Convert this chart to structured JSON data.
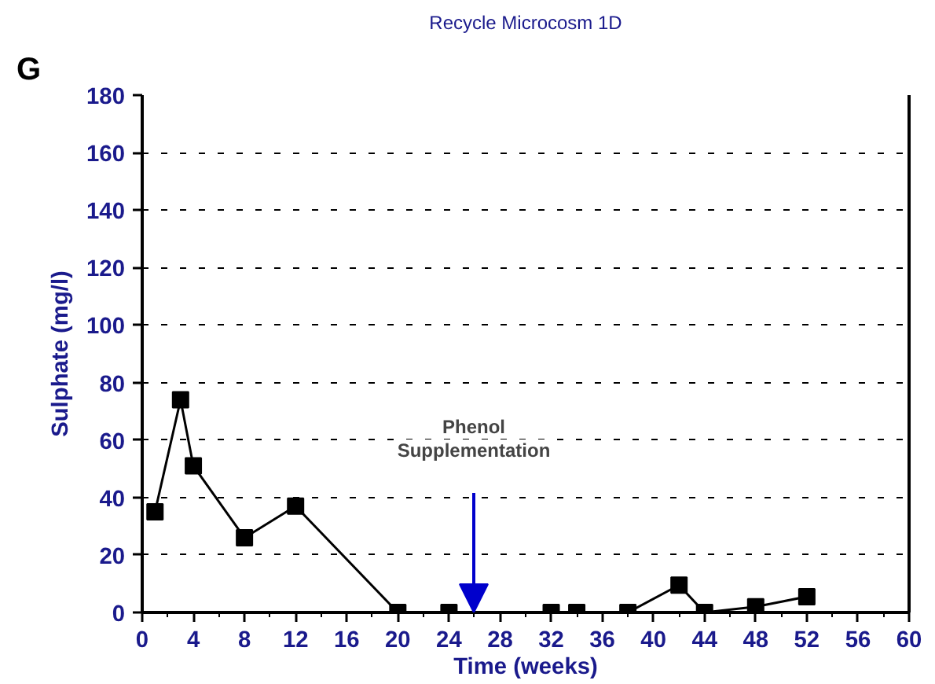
{
  "chart_data": {
    "type": "line",
    "title": "Recycle Microcosm 1D",
    "xlabel": "Time (weeks)",
    "ylabel": "Sulphate (mg/l)",
    "x": [
      1,
      3,
      4,
      8,
      12,
      20,
      24,
      32,
      34,
      38,
      42,
      44,
      48,
      52
    ],
    "series": [
      {
        "color": "#000000",
        "values": [
          35,
          74,
          51,
          26,
          37,
          0,
          0,
          0,
          0,
          0,
          9.5,
          0,
          2,
          5.5
        ]
      }
    ],
    "xlim": [
      0,
      60
    ],
    "xticks": [
      0,
      4,
      8,
      12,
      16,
      20,
      24,
      28,
      32,
      36,
      40,
      44,
      48,
      52,
      56,
      60
    ],
    "ylim": [
      0,
      180
    ],
    "yticks": [
      0,
      20,
      40,
      60,
      80,
      100,
      120,
      140,
      160,
      180
    ],
    "grid": "y",
    "marker": "square",
    "line_style": "solid",
    "annotations": [
      "G",
      "Phenol\nSupplementation"
    ]
  }
}
